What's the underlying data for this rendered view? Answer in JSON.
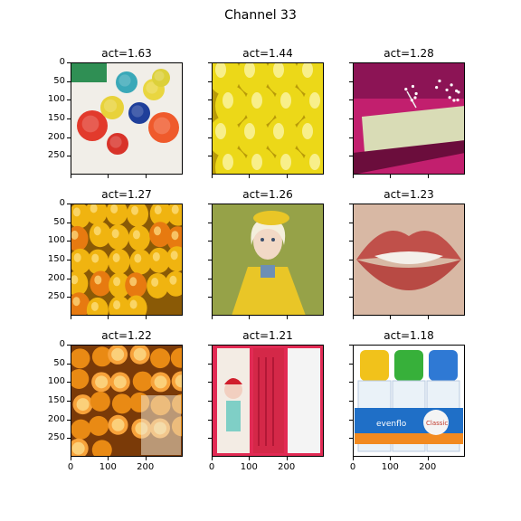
{
  "suptitle": "Channel 33",
  "chart_data": {
    "type": "image-grid",
    "title": "Channel 33",
    "xlim": [
      0,
      300
    ],
    "ylim": [
      300,
      0
    ],
    "xticks": [
      0,
      100,
      200
    ],
    "yticks": [
      0,
      50,
      100,
      150,
      200,
      250
    ],
    "panels": [
      {
        "title": "act=1.63",
        "activation": 1.63,
        "subject": "plastic bottle caps"
      },
      {
        "title": "act=1.44",
        "activation": 1.44,
        "subject": "yellow plastic shapes"
      },
      {
        "title": "act=1.28",
        "activation": 1.28,
        "subject": "gymnastics arena"
      },
      {
        "title": "act=1.27",
        "activation": 1.27,
        "subject": "yellow bell peppers"
      },
      {
        "title": "act=1.26",
        "activation": 1.26,
        "subject": "doll in yellow coat"
      },
      {
        "title": "act=1.23",
        "activation": 1.23,
        "subject": "lips"
      },
      {
        "title": "act=1.22",
        "activation": 1.22,
        "subject": "oranges"
      },
      {
        "title": "act=1.21",
        "activation": 1.21,
        "subject": "pencil case"
      },
      {
        "title": "act=1.18",
        "activation": 1.18,
        "subject": "evenflo baby bottles"
      }
    ]
  },
  "image_text": {
    "bottles_brand": "evenflo",
    "bottles_label": "Classic"
  }
}
